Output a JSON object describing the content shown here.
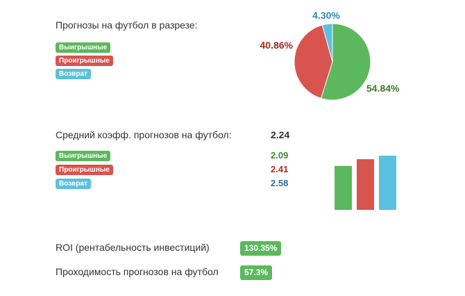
{
  "section1": {
    "title": "Прогнозы на футбол в разрезе:",
    "legend": [
      {
        "label": "Выигрышные",
        "color": "#5cb85c"
      },
      {
        "label": "Проигрышные",
        "color": "#d9534f"
      },
      {
        "label": "Возврат",
        "color": "#5bc0de"
      }
    ]
  },
  "section2": {
    "title": "Средний коэфф. прогнозов на футбол:",
    "total": "2.24",
    "rows": [
      {
        "label": "Выигрышные",
        "value": "2.09",
        "color": "#5cb85c",
        "value_color": "#3c8a2e"
      },
      {
        "label": "Проигрышные",
        "value": "2.41",
        "color": "#d9534f",
        "value_color": "#b52b27"
      },
      {
        "label": "Возврат",
        "value": "2.58",
        "color": "#5bc0de",
        "value_color": "#2e6da4"
      }
    ]
  },
  "metrics": [
    {
      "label": "ROI (рентабельность инвестиций)",
      "value": "130.35%"
    },
    {
      "label": "Проходимость прогнозов на футбол",
      "value": "57.3%"
    }
  ],
  "chart_data": [
    {
      "type": "pie",
      "labels": [
        "Выигрышные",
        "Проигрышные",
        "Возврат"
      ],
      "values": [
        54.84,
        40.86,
        4.3
      ],
      "value_labels": [
        "54.84%",
        "40.86%",
        "4.30%"
      ],
      "colors": [
        "#5cb85c",
        "#d9534f",
        "#5bc0de"
      ],
      "label_colors": [
        "#3c7a28",
        "#9e2a24",
        "#2a8ab8"
      ]
    },
    {
      "type": "bar",
      "categories": [
        "Выигрышные",
        "Проигрышные",
        "Возврат"
      ],
      "values": [
        2.09,
        2.41,
        2.58
      ],
      "colors": [
        "#5cb85c",
        "#d9534f",
        "#5bc0de"
      ],
      "grid": false,
      "axes_visible": false
    }
  ]
}
